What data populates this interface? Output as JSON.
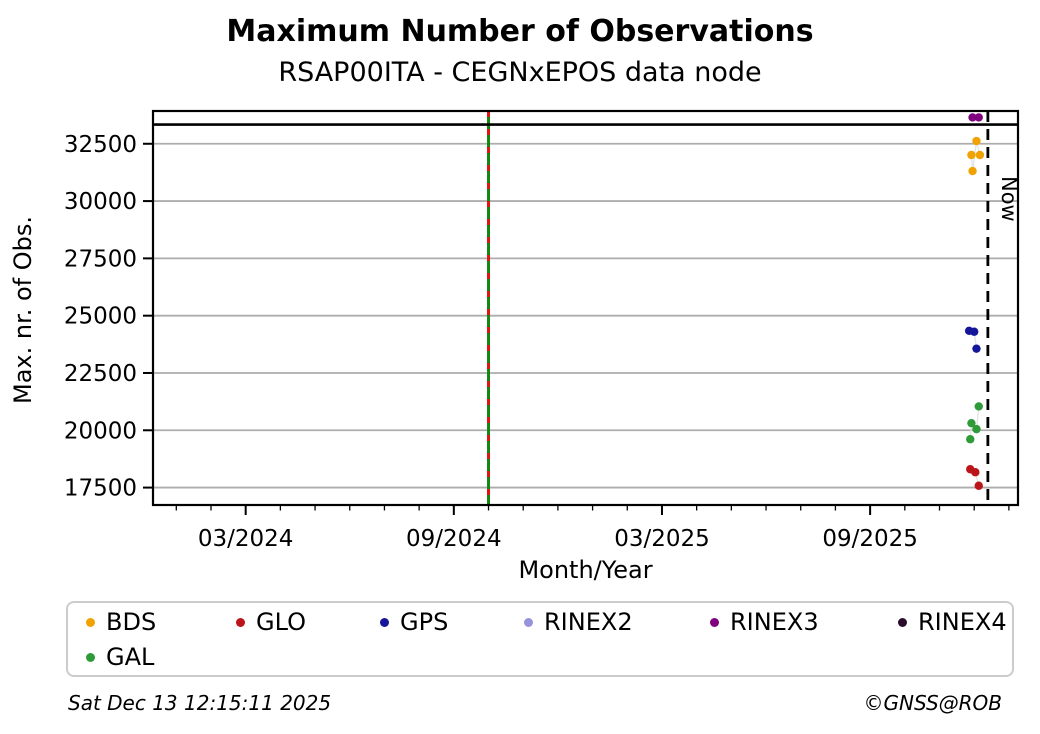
{
  "title": "Maximum Number of Observations",
  "subtitle": "RSAP00ITA - CEGNxEPOS data node",
  "footer": {
    "timestamp": "Sat Dec 13 12:15:11 2025",
    "copyright": "©GNSS@ROB"
  },
  "chart_data": {
    "type": "scatter",
    "title": "Maximum Number of Observations",
    "subtitle": "RSAP00ITA - CEGNxEPOS data node",
    "xlabel": "Month/Year",
    "ylabel": "Max. nr. of Obs.",
    "xlim": [
      "2023-12-11",
      "2026-01-09"
    ],
    "ylim": [
      16740,
      33930
    ],
    "x_major_ticks": [
      {
        "date": "2024-03-01",
        "label": "03/2024"
      },
      {
        "date": "2024-09-01",
        "label": "09/2024"
      },
      {
        "date": "2025-03-01",
        "label": "03/2025"
      },
      {
        "date": "2025-09-01",
        "label": "09/2025"
      }
    ],
    "x_minor_tick_interval": "1 month",
    "y_ticks": [
      17500,
      20000,
      22500,
      25000,
      27500,
      30000,
      32500
    ],
    "grid": "horizontal-major",
    "grid_color": "#ADADAD",
    "legend_position": "below",
    "annotations": {
      "now_line": {
        "date": "2025-12-13",
        "label": "Now",
        "style": "dashed-black-vertical"
      },
      "event_line": {
        "date": "2024-10-01",
        "style": "green-red-dashed-vertical",
        "green": "#128812",
        "red": "#E01414"
      },
      "max_line": {
        "value": 33340,
        "style": "solid-black-horizontal"
      }
    },
    "series": [
      {
        "name": "BDS",
        "color": "#F0A202",
        "points": [
          [
            "2025-11-29",
            32010
          ],
          [
            "2025-11-30",
            31310
          ],
          [
            "2025-12-03",
            32620
          ],
          [
            "2025-12-06",
            32010
          ]
        ]
      },
      {
        "name": "GLO",
        "color": "#BB1419",
        "points": [
          [
            "2025-11-28",
            18300
          ],
          [
            "2025-12-02",
            18170
          ],
          [
            "2025-12-05",
            17580
          ]
        ]
      },
      {
        "name": "GPS",
        "color": "#16169B",
        "points": [
          [
            "2025-11-27",
            24340
          ],
          [
            "2025-12-01",
            24300
          ],
          [
            "2025-12-03",
            23560
          ]
        ]
      },
      {
        "name": "RINEX2",
        "color": "#9693DA",
        "points": []
      },
      {
        "name": "RINEX3",
        "color": "#800080",
        "points": [
          [
            "2025-11-30",
            33650
          ],
          [
            "2025-12-05",
            33650
          ]
        ]
      },
      {
        "name": "RINEX4",
        "color": "#290D2B",
        "points": []
      },
      {
        "name": "GAL",
        "color": "#2E9B38",
        "points": [
          [
            "2025-11-28",
            19610
          ],
          [
            "2025-11-29",
            20310
          ],
          [
            "2025-12-03",
            20050
          ],
          [
            "2025-12-05",
            21040
          ]
        ]
      }
    ]
  }
}
